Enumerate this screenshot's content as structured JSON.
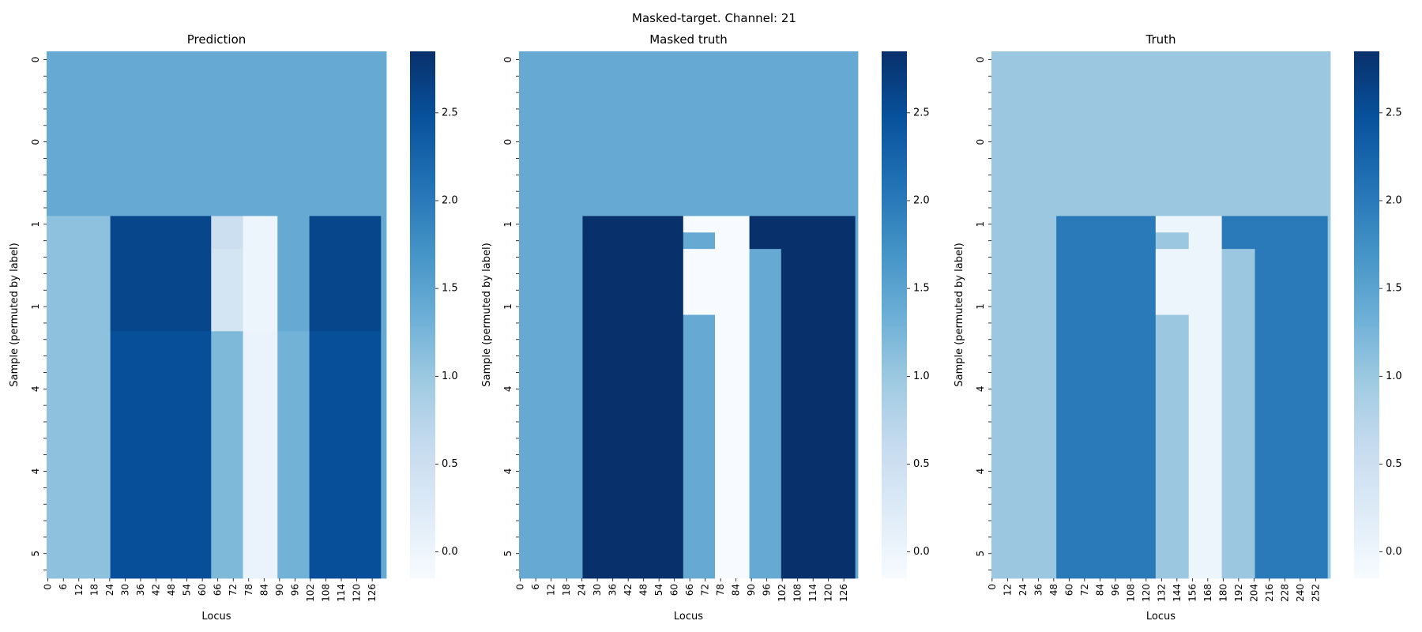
{
  "figure": {
    "title": "Masked-target. Channel: 21"
  },
  "colors": {
    "cmap_low": "#f7fbff",
    "cmap_high": "#08306b"
  },
  "chart_data": [
    {
      "type": "heatmap",
      "title": "Prediction",
      "xlabel": "Locus",
      "ylabel": "Sample (permuted by label)",
      "x_tick_labels": [
        "0",
        "6",
        "12",
        "18",
        "24",
        "30",
        "36",
        "42",
        "48",
        "54",
        "60",
        "66",
        "72",
        "78",
        "84",
        "90",
        "96",
        "102",
        "108",
        "114",
        "120",
        "126"
      ],
      "x_count": 128,
      "y_tick_labels": [
        "0",
        "0",
        "1",
        "1",
        "4",
        "4",
        "5"
      ],
      "y_count": 32,
      "colorbar": {
        "range": [
          -0.15,
          2.85
        ],
        "ticks": [
          0.0,
          0.5,
          1.0,
          1.5,
          2.0,
          2.5
        ],
        "tick_labels": [
          "0.0",
          "0.5",
          "1.0",
          "1.5",
          "2.0",
          "2.5"
        ]
      },
      "rows": [
        {
          "y0": 0,
          "y1": 10,
          "segments": [
            {
              "x0": 0,
              "x1": 128,
              "v": 1.4
            }
          ]
        },
        {
          "y0": 10,
          "y1": 12,
          "segments": [
            {
              "x0": 0,
              "x1": 24,
              "v": 1.1
            },
            {
              "x0": 24,
              "x1": 62,
              "v": 2.6
            },
            {
              "x0": 62,
              "x1": 74,
              "v": 0.5
            },
            {
              "x0": 74,
              "x1": 87,
              "v": 0.0
            },
            {
              "x0": 87,
              "x1": 99,
              "v": 1.4
            },
            {
              "x0": 99,
              "x1": 126,
              "v": 2.6
            },
            {
              "x0": 126,
              "x1": 128,
              "v": 1.4
            }
          ]
        },
        {
          "y0": 12,
          "y1": 17,
          "segments": [
            {
              "x0": 0,
              "x1": 24,
              "v": 1.1
            },
            {
              "x0": 24,
              "x1": 62,
              "v": 2.6
            },
            {
              "x0": 62,
              "x1": 74,
              "v": 0.4
            },
            {
              "x0": 74,
              "x1": 87,
              "v": 0.0
            },
            {
              "x0": 87,
              "x1": 99,
              "v": 1.4
            },
            {
              "x0": 99,
              "x1": 126,
              "v": 2.6
            },
            {
              "x0": 126,
              "x1": 128,
              "v": 1.4
            }
          ]
        },
        {
          "y0": 17,
          "y1": 32,
          "segments": [
            {
              "x0": 0,
              "x1": 24,
              "v": 1.1
            },
            {
              "x0": 24,
              "x1": 62,
              "v": 2.5
            },
            {
              "x0": 62,
              "x1": 74,
              "v": 1.2
            },
            {
              "x0": 74,
              "x1": 87,
              "v": 0.05
            },
            {
              "x0": 87,
              "x1": 99,
              "v": 1.3
            },
            {
              "x0": 99,
              "x1": 126,
              "v": 2.5
            },
            {
              "x0": 126,
              "x1": 128,
              "v": 1.4
            }
          ]
        }
      ]
    },
    {
      "type": "heatmap",
      "title": "Masked truth",
      "xlabel": "Locus",
      "ylabel": "Sample (permuted by label)",
      "x_tick_labels": [
        "0",
        "6",
        "12",
        "18",
        "24",
        "30",
        "36",
        "42",
        "48",
        "54",
        "60",
        "66",
        "72",
        "78",
        "84",
        "90",
        "96",
        "102",
        "108",
        "114",
        "120",
        "126"
      ],
      "x_count": 128,
      "y_tick_labels": [
        "0",
        "0",
        "1",
        "1",
        "4",
        "4",
        "5"
      ],
      "y_count": 32,
      "colorbar": {
        "range": [
          -0.15,
          2.85
        ],
        "ticks": [
          0.0,
          0.5,
          1.0,
          1.5,
          2.0,
          2.5
        ],
        "tick_labels": [
          "0.0",
          "0.5",
          "1.0",
          "1.5",
          "2.0",
          "2.5"
        ]
      },
      "rows": [
        {
          "y0": 0,
          "y1": 10,
          "segments": [
            {
              "x0": 0,
              "x1": 128,
              "v": 1.4
            }
          ]
        },
        {
          "y0": 10,
          "y1": 11,
          "segments": [
            {
              "x0": 0,
              "x1": 24,
              "v": 1.4
            },
            {
              "x0": 24,
              "x1": 62,
              "v": 2.85
            },
            {
              "x0": 62,
              "x1": 87,
              "v": -0.15
            },
            {
              "x0": 87,
              "x1": 127,
              "v": 2.85
            },
            {
              "x0": 127,
              "x1": 128,
              "v": 1.4
            }
          ]
        },
        {
          "y0": 11,
          "y1": 12,
          "segments": [
            {
              "x0": 0,
              "x1": 24,
              "v": 1.4
            },
            {
              "x0": 24,
              "x1": 62,
              "v": 2.85
            },
            {
              "x0": 62,
              "x1": 74,
              "v": 1.4
            },
            {
              "x0": 74,
              "x1": 87,
              "v": -0.15
            },
            {
              "x0": 87,
              "x1": 127,
              "v": 2.85
            },
            {
              "x0": 127,
              "x1": 128,
              "v": 1.4
            }
          ]
        },
        {
          "y0": 12,
          "y1": 16,
          "segments": [
            {
              "x0": 0,
              "x1": 24,
              "v": 1.4
            },
            {
              "x0": 24,
              "x1": 62,
              "v": 2.85
            },
            {
              "x0": 62,
              "x1": 87,
              "v": -0.15
            },
            {
              "x0": 87,
              "x1": 99,
              "v": 1.4
            },
            {
              "x0": 99,
              "x1": 127,
              "v": 2.85
            },
            {
              "x0": 127,
              "x1": 128,
              "v": 1.4
            }
          ]
        },
        {
          "y0": 16,
          "y1": 32,
          "segments": [
            {
              "x0": 0,
              "x1": 24,
              "v": 1.4
            },
            {
              "x0": 24,
              "x1": 62,
              "v": 2.85
            },
            {
              "x0": 62,
              "x1": 74,
              "v": 1.4
            },
            {
              "x0": 74,
              "x1": 87,
              "v": -0.15
            },
            {
              "x0": 87,
              "x1": 99,
              "v": 1.4
            },
            {
              "x0": 99,
              "x1": 127,
              "v": 2.85
            },
            {
              "x0": 127,
              "x1": 128,
              "v": 1.4
            }
          ]
        }
      ]
    },
    {
      "type": "heatmap",
      "title": "Truth",
      "xlabel": "Locus",
      "ylabel": "Sample (permuted by label)",
      "x_tick_labels": [
        "0",
        "12",
        "24",
        "36",
        "48",
        "60",
        "72",
        "84",
        "96",
        "108",
        "120",
        "132",
        "144",
        "156",
        "168",
        "180",
        "192",
        "204",
        "216",
        "228",
        "240",
        "252"
      ],
      "x_count": 256,
      "y_tick_labels": [
        "0",
        "0",
        "1",
        "1",
        "4",
        "4",
        "5"
      ],
      "y_count": 32,
      "colorbar": {
        "range": [
          -0.15,
          2.85
        ],
        "ticks": [
          0.0,
          0.5,
          1.0,
          1.5,
          2.0,
          2.5
        ],
        "tick_labels": [
          "0.0",
          "0.5",
          "1.0",
          "1.5",
          "2.0",
          "2.5"
        ]
      },
      "rows": [
        {
          "y0": 0,
          "y1": 10,
          "segments": [
            {
              "x0": 0,
              "x1": 256,
              "v": 1.0
            }
          ]
        },
        {
          "y0": 10,
          "y1": 11,
          "segments": [
            {
              "x0": 0,
              "x1": 49,
              "v": 1.0
            },
            {
              "x0": 49,
              "x1": 124,
              "v": 2.0
            },
            {
              "x0": 124,
              "x1": 174,
              "v": 0.0
            },
            {
              "x0": 174,
              "x1": 254,
              "v": 2.0
            },
            {
              "x0": 254,
              "x1": 256,
              "v": 1.0
            }
          ]
        },
        {
          "y0": 11,
          "y1": 12,
          "segments": [
            {
              "x0": 0,
              "x1": 49,
              "v": 1.0
            },
            {
              "x0": 49,
              "x1": 124,
              "v": 2.0
            },
            {
              "x0": 124,
              "x1": 149,
              "v": 1.0
            },
            {
              "x0": 149,
              "x1": 174,
              "v": 0.0
            },
            {
              "x0": 174,
              "x1": 254,
              "v": 2.0
            },
            {
              "x0": 254,
              "x1": 256,
              "v": 1.0
            }
          ]
        },
        {
          "y0": 12,
          "y1": 16,
          "segments": [
            {
              "x0": 0,
              "x1": 49,
              "v": 1.0
            },
            {
              "x0": 49,
              "x1": 124,
              "v": 2.0
            },
            {
              "x0": 124,
              "x1": 174,
              "v": 0.0
            },
            {
              "x0": 174,
              "x1": 199,
              "v": 1.0
            },
            {
              "x0": 199,
              "x1": 254,
              "v": 2.0
            },
            {
              "x0": 254,
              "x1": 256,
              "v": 1.0
            }
          ]
        },
        {
          "y0": 16,
          "y1": 32,
          "segments": [
            {
              "x0": 0,
              "x1": 49,
              "v": 1.0
            },
            {
              "x0": 49,
              "x1": 124,
              "v": 2.0
            },
            {
              "x0": 124,
              "x1": 149,
              "v": 1.0
            },
            {
              "x0": 149,
              "x1": 174,
              "v": 0.0
            },
            {
              "x0": 174,
              "x1": 199,
              "v": 1.0
            },
            {
              "x0": 199,
              "x1": 254,
              "v": 2.0
            },
            {
              "x0": 254,
              "x1": 256,
              "v": 1.0
            }
          ]
        }
      ]
    }
  ]
}
